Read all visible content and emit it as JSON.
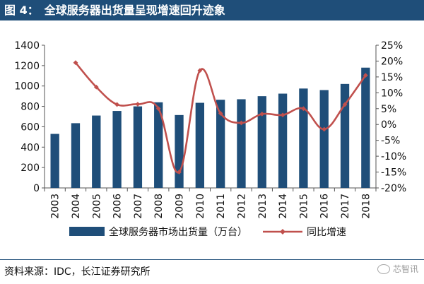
{
  "figure": {
    "label": "图 4：",
    "title": "全球服务器出货量呈现增速回升迹象"
  },
  "source": "资料来源：IDC，长江证券研究所",
  "watermark": "芯智讯",
  "colors": {
    "bar": "#1f4e79",
    "line": "#c0504d",
    "title_bg": "#1f4e79"
  },
  "chart_data": {
    "type": "bar",
    "categories": [
      "2003",
      "2004",
      "2005",
      "2006",
      "2007",
      "2008",
      "2009",
      "2010",
      "2011",
      "2012",
      "2013",
      "2014",
      "2015",
      "2016",
      "2017",
      "2018"
    ],
    "series": [
      {
        "name": "全球服务器市场出货量（万台）",
        "type": "bar",
        "axis": "left",
        "values": [
          530,
          635,
          710,
          755,
          800,
          840,
          715,
          835,
          865,
          870,
          900,
          925,
          975,
          960,
          1020,
          1180
        ]
      },
      {
        "name": "同比增速",
        "type": "line",
        "axis": "right",
        "values": [
          null,
          19.5,
          11.8,
          6.3,
          6.4,
          5.0,
          -15.0,
          17.0,
          3.5,
          0.5,
          3.3,
          3.0,
          5.0,
          -1.5,
          6.3,
          15.5
        ]
      }
    ],
    "y_left": {
      "min": 0,
      "max": 1400,
      "ticks": [
        "0",
        "200",
        "400",
        "600",
        "800",
        "1000",
        "1200",
        "1400"
      ]
    },
    "y_right": {
      "min": -20,
      "max": 25,
      "ticks": [
        "-20%",
        "-15%",
        "-10%",
        "-5%",
        "0%",
        "5%",
        "10%",
        "15%",
        "20%",
        "25%"
      ]
    },
    "legend_position": "bottom",
    "grid": false
  }
}
